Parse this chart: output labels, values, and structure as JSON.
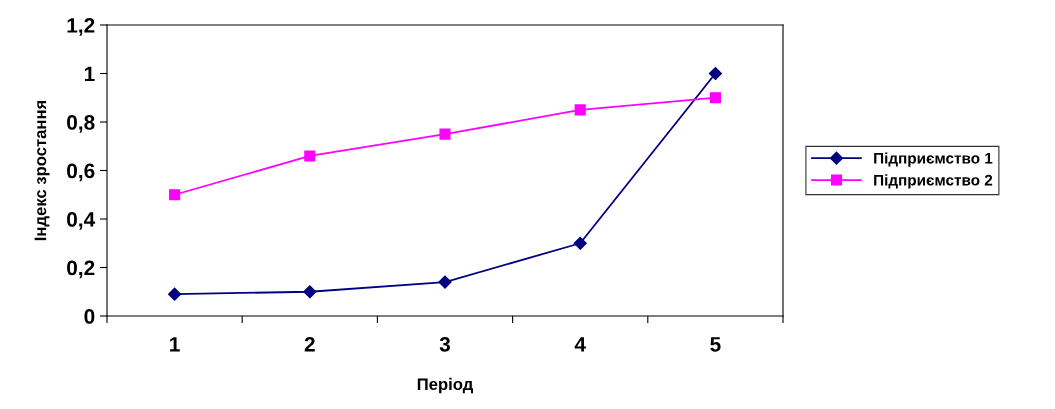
{
  "chart_data": {
    "type": "line",
    "xlabel": "Період",
    "ylabel": "Індекс зростання",
    "categories": [
      "1",
      "2",
      "3",
      "4",
      "5"
    ],
    "series": [
      {
        "name": "Підприємство 1",
        "color": "#000080",
        "marker": "diamond",
        "values": [
          0.09,
          0.1,
          0.14,
          0.3,
          1.0
        ]
      },
      {
        "name": "Підприємство 2",
        "color": "#ff00ff",
        "marker": "square",
        "values": [
          0.5,
          0.66,
          0.75,
          0.85,
          0.9
        ]
      }
    ],
    "ylim": [
      0,
      1.2
    ],
    "yticks": [
      {
        "value": 0,
        "label": "0"
      },
      {
        "value": 0.2,
        "label": "0,2"
      },
      {
        "value": 0.4,
        "label": "0,4"
      },
      {
        "value": 0.6,
        "label": "0,6"
      },
      {
        "value": 0.8,
        "label": "0,8"
      },
      {
        "value": 1,
        "label": "1"
      },
      {
        "value": 1.2,
        "label": "1,2"
      }
    ],
    "grid": false,
    "legend": "right",
    "line_style": "solid"
  }
}
